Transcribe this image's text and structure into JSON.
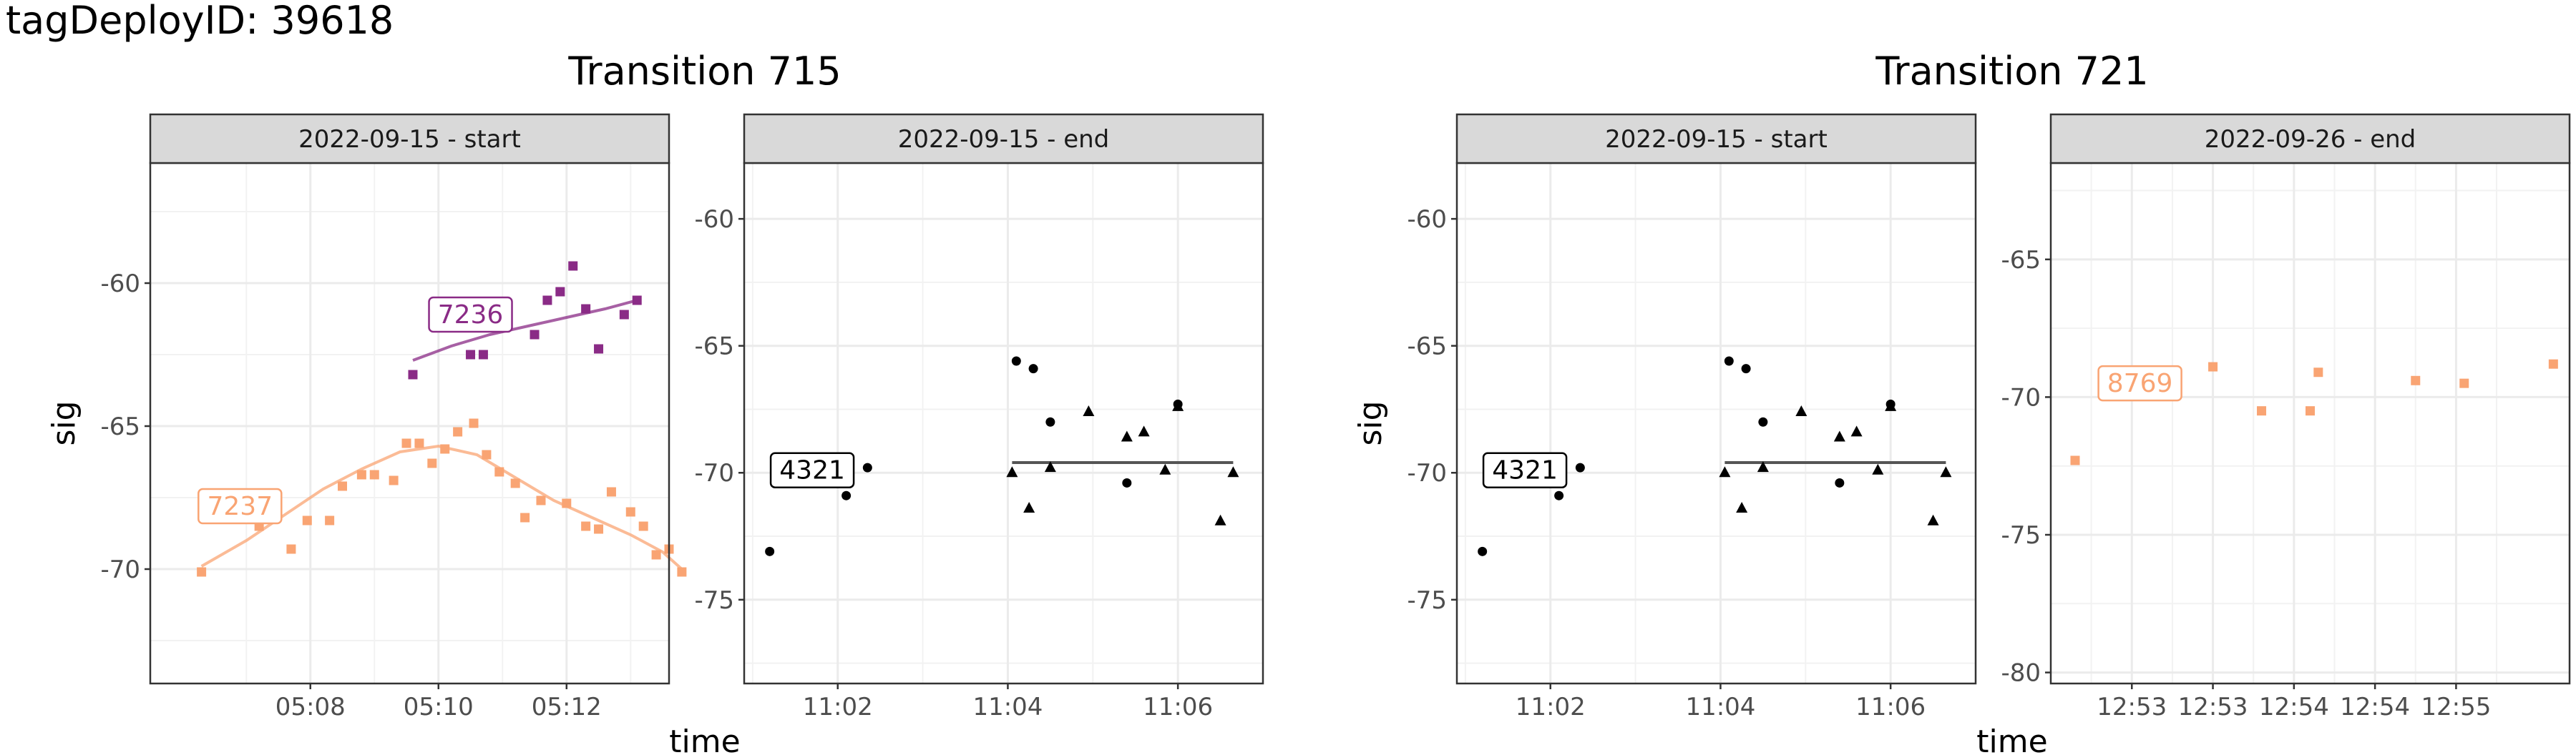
{
  "page": {
    "title": "tagDeployID: 39618"
  },
  "chart_data": [
    {
      "type": "scatter",
      "title": "Transition 715",
      "ylabel": "sig",
      "xlabel": "time",
      "panels": [
        {
          "strip": "2022-09-15 - start",
          "xlim": [
            5.5,
            13.6
          ],
          "ylim": [
            -74,
            -55.8
          ],
          "x_unit": "minutes after 05:00",
          "xticks": [
            8,
            10,
            12
          ],
          "xtick_labels": [
            "05:08",
            "05:10",
            "05:12"
          ],
          "yticks": [
            -60,
            -65,
            -70
          ],
          "ytick_labels": [
            "-60",
            "-65",
            "-70"
          ],
          "grid": true,
          "series": [
            {
              "name": "7236",
              "color": "#8a2b86",
              "shape": "square",
              "points": [
                [
                  9.6,
                  -63.2
                ],
                [
                  10.5,
                  -62.5
                ],
                [
                  10.7,
                  -62.5
                ],
                [
                  11.5,
                  -61.8
                ],
                [
                  11.7,
                  -60.6
                ],
                [
                  11.9,
                  -60.3
                ],
                [
                  12.1,
                  -59.4
                ],
                [
                  12.3,
                  -60.9
                ],
                [
                  12.5,
                  -62.3
                ],
                [
                  12.9,
                  -61.1
                ],
                [
                  13.1,
                  -60.6
                ]
              ],
              "smooth": [
                [
                  9.6,
                  -62.7
                ],
                [
                  10.2,
                  -62.2
                ],
                [
                  10.8,
                  -61.8
                ],
                [
                  11.4,
                  -61.5
                ],
                [
                  12.0,
                  -61.2
                ],
                [
                  12.6,
                  -60.9
                ],
                [
                  13.1,
                  -60.6
                ]
              ],
              "label": {
                "text": "7236",
                "at": [
                  10.5,
                  -61.1
                ]
              }
            },
            {
              "name": "7237",
              "color": "#f9a473",
              "shape": "square",
              "points": [
                [
                  6.3,
                  -70.1
                ],
                [
                  7.2,
                  -68.5
                ],
                [
                  7.7,
                  -69.3
                ],
                [
                  7.95,
                  -68.3
                ],
                [
                  8.3,
                  -68.3
                ],
                [
                  8.5,
                  -67.1
                ],
                [
                  8.8,
                  -66.7
                ],
                [
                  9.0,
                  -66.7
                ],
                [
                  9.3,
                  -66.9
                ],
                [
                  9.5,
                  -65.6
                ],
                [
                  9.7,
                  -65.6
                ],
                [
                  9.9,
                  -66.3
                ],
                [
                  10.1,
                  -65.8
                ],
                [
                  10.3,
                  -65.2
                ],
                [
                  10.55,
                  -64.9
                ],
                [
                  10.75,
                  -66.0
                ],
                [
                  10.95,
                  -66.6
                ],
                [
                  11.2,
                  -67.0
                ],
                [
                  11.35,
                  -68.2
                ],
                [
                  11.6,
                  -67.6
                ],
                [
                  12.0,
                  -67.7
                ],
                [
                  12.3,
                  -68.5
                ],
                [
                  12.5,
                  -68.6
                ],
                [
                  12.7,
                  -67.3
                ],
                [
                  13.0,
                  -68.0
                ],
                [
                  13.2,
                  -68.5
                ],
                [
                  13.4,
                  -69.5
                ],
                [
                  13.6,
                  -69.3
                ],
                [
                  13.8,
                  -70.1
                ]
              ],
              "smooth": [
                [
                  6.3,
                  -69.9
                ],
                [
                  7.0,
                  -69.0
                ],
                [
                  7.6,
                  -68.1
                ],
                [
                  8.2,
                  -67.2
                ],
                [
                  8.8,
                  -66.5
                ],
                [
                  9.4,
                  -65.9
                ],
                [
                  10.0,
                  -65.7
                ],
                [
                  10.6,
                  -66.0
                ],
                [
                  11.2,
                  -66.8
                ],
                [
                  11.8,
                  -67.6
                ],
                [
                  12.4,
                  -68.2
                ],
                [
                  13.0,
                  -68.8
                ],
                [
                  13.5,
                  -69.4
                ],
                [
                  13.8,
                  -70.0
                ]
              ],
              "label": {
                "text": "7237",
                "at": [
                  6.9,
                  -67.8
                ]
              }
            }
          ]
        },
        {
          "strip": "2022-09-15 - end",
          "xlim": [
            0.9,
            7.0
          ],
          "ylim": [
            -78.3,
            -57.8
          ],
          "x_unit": "minutes after 11:00",
          "xticks": [
            2,
            4,
            6
          ],
          "xtick_labels": [
            "11:02",
            "11:04",
            "11:06"
          ],
          "yticks": [
            -60,
            -65,
            -70,
            -75
          ],
          "ytick_labels": [
            "-60",
            "-65",
            "-70",
            "-75"
          ],
          "grid": true,
          "series": [
            {
              "name": "4321",
              "color": "#000000",
              "shape": "circle",
              "points": [
                [
                  1.2,
                  -73.1
                ],
                [
                  2.1,
                  -70.9
                ],
                [
                  2.35,
                  -69.8
                ],
                [
                  4.1,
                  -65.6
                ],
                [
                  4.3,
                  -65.9
                ],
                [
                  4.5,
                  -68.0
                ],
                [
                  5.4,
                  -70.4
                ],
                [
                  6.0,
                  -67.3
                ]
              ],
              "label": {
                "text": "4321",
                "at": [
                  1.7,
                  -69.9
                ]
              }
            },
            {
              "name": "",
              "color": "#000000",
              "shape": "triangle",
              "points": [
                [
                  4.05,
                  -70.0
                ],
                [
                  4.25,
                  -71.4
                ],
                [
                  4.5,
                  -69.8
                ],
                [
                  4.95,
                  -67.6
                ],
                [
                  5.4,
                  -68.6
                ],
                [
                  5.6,
                  -68.4
                ],
                [
                  5.85,
                  -69.9
                ],
                [
                  6.0,
                  -67.4
                ],
                [
                  6.5,
                  -71.9
                ],
                [
                  6.65,
                  -70.0
                ]
              ],
              "hline": {
                "y": -69.6,
                "x_from": 4.05,
                "x_to": 6.65
              }
            }
          ]
        }
      ]
    },
    {
      "type": "scatter",
      "title": "Transition 721",
      "ylabel": "sig",
      "xlabel": "time",
      "panels": [
        {
          "strip": "2022-09-15 - start",
          "xlim": [
            0.9,
            7.0
          ],
          "ylim": [
            -78.3,
            -57.8
          ],
          "x_unit": "minutes after 11:00",
          "xticks": [
            2,
            4,
            6
          ],
          "xtick_labels": [
            "11:02",
            "11:04",
            "11:06"
          ],
          "yticks": [
            -60,
            -65,
            -70,
            -75
          ],
          "ytick_labels": [
            "-60",
            "-65",
            "-70",
            "-75"
          ],
          "grid": true,
          "series": [
            {
              "name": "4321",
              "color": "#000000",
              "shape": "circle",
              "points": [
                [
                  1.2,
                  -73.1
                ],
                [
                  2.1,
                  -70.9
                ],
                [
                  2.35,
                  -69.8
                ],
                [
                  4.1,
                  -65.6
                ],
                [
                  4.3,
                  -65.9
                ],
                [
                  4.5,
                  -68.0
                ],
                [
                  5.4,
                  -70.4
                ],
                [
                  6.0,
                  -67.3
                ]
              ],
              "label": {
                "text": "4321",
                "at": [
                  1.7,
                  -69.9
                ]
              }
            },
            {
              "name": "",
              "color": "#000000",
              "shape": "triangle",
              "points": [
                [
                  4.05,
                  -70.0
                ],
                [
                  4.25,
                  -71.4
                ],
                [
                  4.5,
                  -69.8
                ],
                [
                  4.95,
                  -67.6
                ],
                [
                  5.4,
                  -68.6
                ],
                [
                  5.6,
                  -68.4
                ],
                [
                  5.85,
                  -69.9
                ],
                [
                  6.0,
                  -67.4
                ],
                [
                  6.5,
                  -71.9
                ],
                [
                  6.65,
                  -70.0
                ]
              ],
              "hline": {
                "y": -69.6,
                "x_from": 4.05,
                "x_to": 6.65
              }
            }
          ]
        },
        {
          "strip": "2022-09-26 - end",
          "xlim": [
            52.3,
            55.5
          ],
          "ylim": [
            -80.4,
            -61.5
          ],
          "x_unit": "minutes after 12:00",
          "xticks": [
            52.8,
            53.3,
            53.8,
            54.3,
            54.8
          ],
          "xtick_labels": [
            "12:53",
            "12:53",
            "12:54",
            "12:54",
            "12:55"
          ],
          "yticks": [
            -65,
            -70,
            -75,
            -80
          ],
          "ytick_labels": [
            "-65",
            "-70",
            "-75",
            "-80"
          ],
          "grid": true,
          "series": [
            {
              "name": "8769",
              "color": "#f9a473",
              "shape": "square",
              "points": [
                [
                  52.45,
                  -72.3
                ],
                [
                  53.3,
                  -68.9
                ],
                [
                  53.6,
                  -70.5
                ],
                [
                  53.9,
                  -70.5
                ],
                [
                  53.95,
                  -69.1
                ],
                [
                  54.55,
                  -69.4
                ],
                [
                  54.85,
                  -69.5
                ],
                [
                  55.4,
                  -68.8
                ]
              ],
              "label": {
                "text": "8769",
                "at": [
                  52.85,
                  -69.5
                ]
              }
            }
          ]
        }
      ]
    }
  ]
}
